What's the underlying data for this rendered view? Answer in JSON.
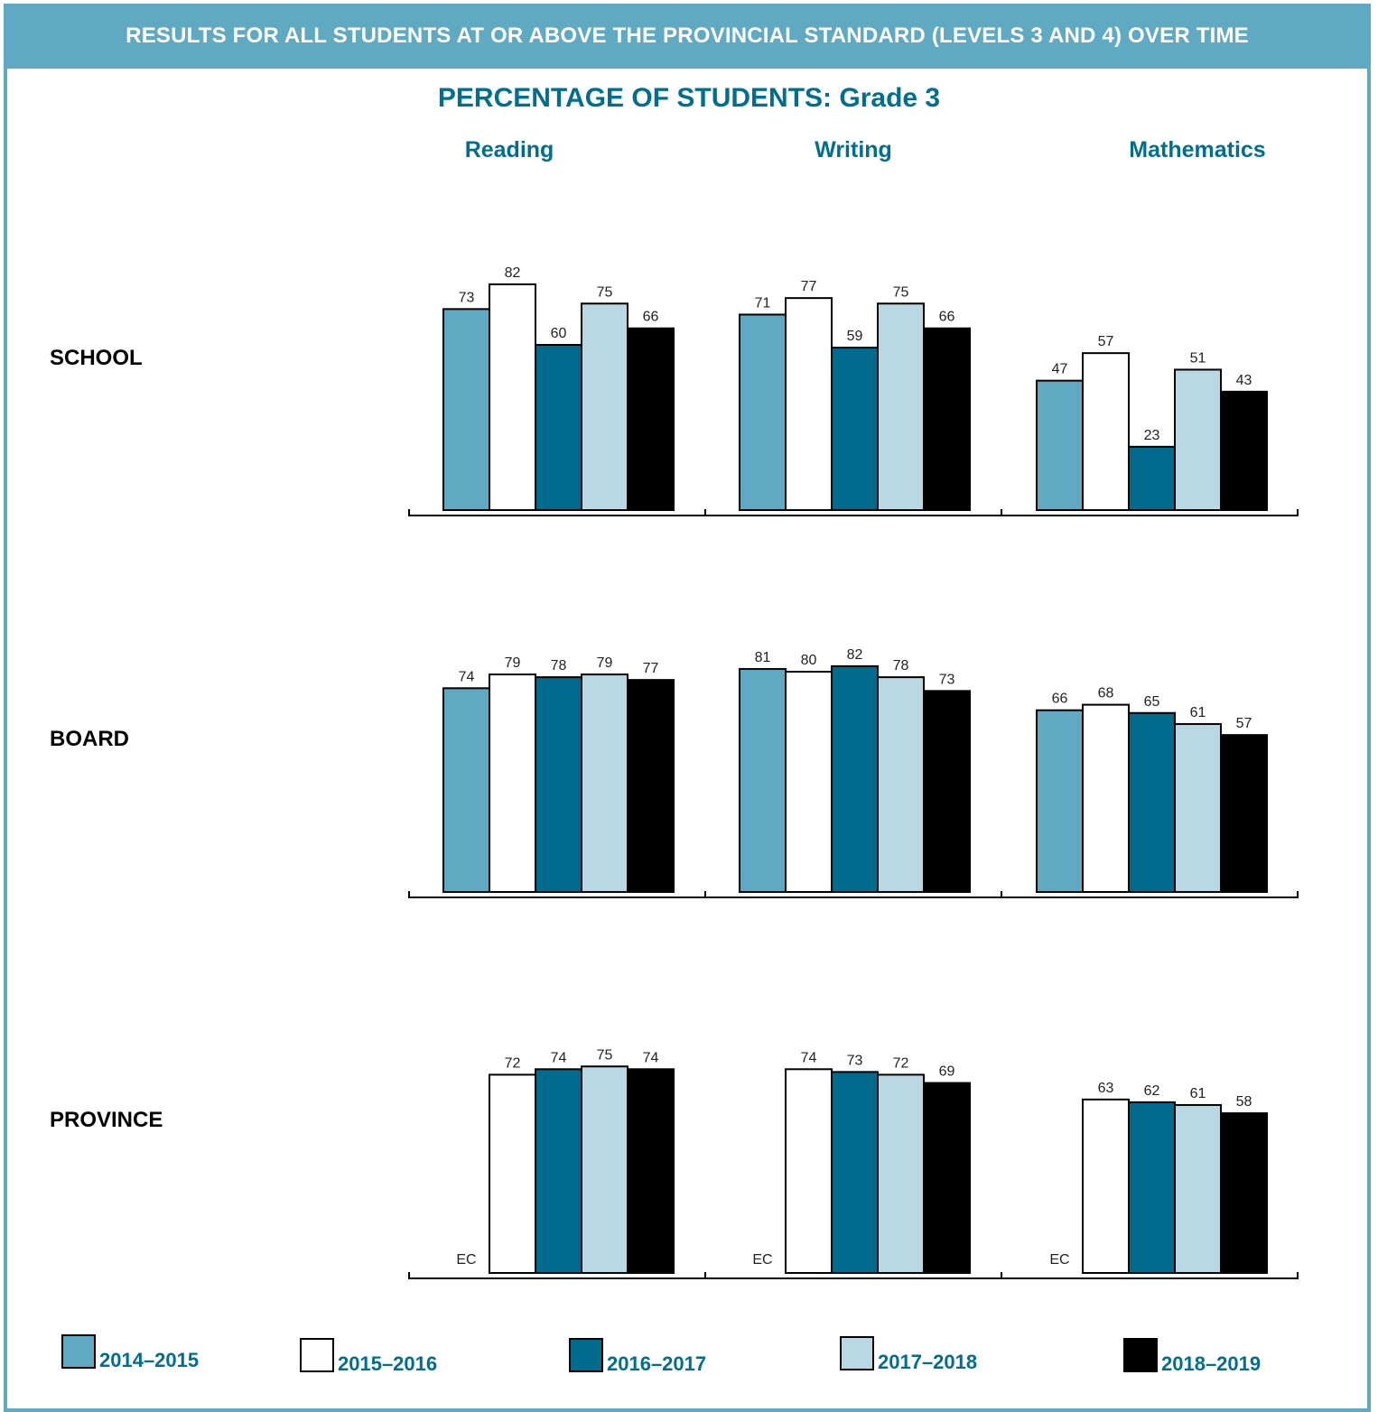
{
  "banner": {
    "title": "RESULTS FOR ALL STUDENTS AT OR ABOVE THE PROVINCIAL STANDARD (LEVELS 3 AND 4) OVER TIME"
  },
  "heading": {
    "title": "PERCENTAGE OF STUDENTS: Grade 3"
  },
  "subjects": [
    "Reading",
    "Writing",
    "Mathematics"
  ],
  "rows": [
    "SCHOOL",
    "BOARD",
    "PROVINCE"
  ],
  "colors": {
    "2014–2015": "#5fa9c2",
    "2015–2016": "#ffffff",
    "2016–2017": "#006b8c",
    "2017–2018": "#bad8e3",
    "2018–2019": "#000000",
    "border": "#5fa9c2",
    "accent_text": "#006f8f"
  },
  "legend": [
    "2014–2015",
    "2015–2016",
    "2016–2017",
    "2017–2018",
    "2018–2019"
  ],
  "chart_data": {
    "type": "bar",
    "title": "PERCENTAGE OF STUDENTS: Grade 3",
    "series_names": [
      "2014–2015",
      "2015–2016",
      "2016–2017",
      "2017–2018",
      "2018–2019"
    ],
    "ylim": [
      0,
      100
    ],
    "grid": false,
    "legend_position": "bottom",
    "panels": [
      {
        "row": "SCHOOL",
        "groups": [
          {
            "subject": "Reading",
            "values": [
              73,
              82,
              60,
              75,
              66
            ]
          },
          {
            "subject": "Writing",
            "values": [
              71,
              77,
              59,
              75,
              66
            ]
          },
          {
            "subject": "Mathematics",
            "values": [
              47,
              57,
              23,
              51,
              43
            ]
          }
        ]
      },
      {
        "row": "BOARD",
        "groups": [
          {
            "subject": "Reading",
            "values": [
              74,
              79,
              78,
              79,
              77
            ]
          },
          {
            "subject": "Writing",
            "values": [
              81,
              80,
              82,
              78,
              73
            ]
          },
          {
            "subject": "Mathematics",
            "values": [
              66,
              68,
              65,
              61,
              57
            ]
          }
        ]
      },
      {
        "row": "PROVINCE",
        "groups": [
          {
            "subject": "Reading",
            "values": [
              "EC",
              72,
              74,
              75,
              74
            ]
          },
          {
            "subject": "Writing",
            "values": [
              "EC",
              74,
              73,
              72,
              69
            ]
          },
          {
            "subject": "Mathematics",
            "values": [
              "EC",
              63,
              62,
              61,
              58
            ]
          }
        ]
      }
    ]
  }
}
